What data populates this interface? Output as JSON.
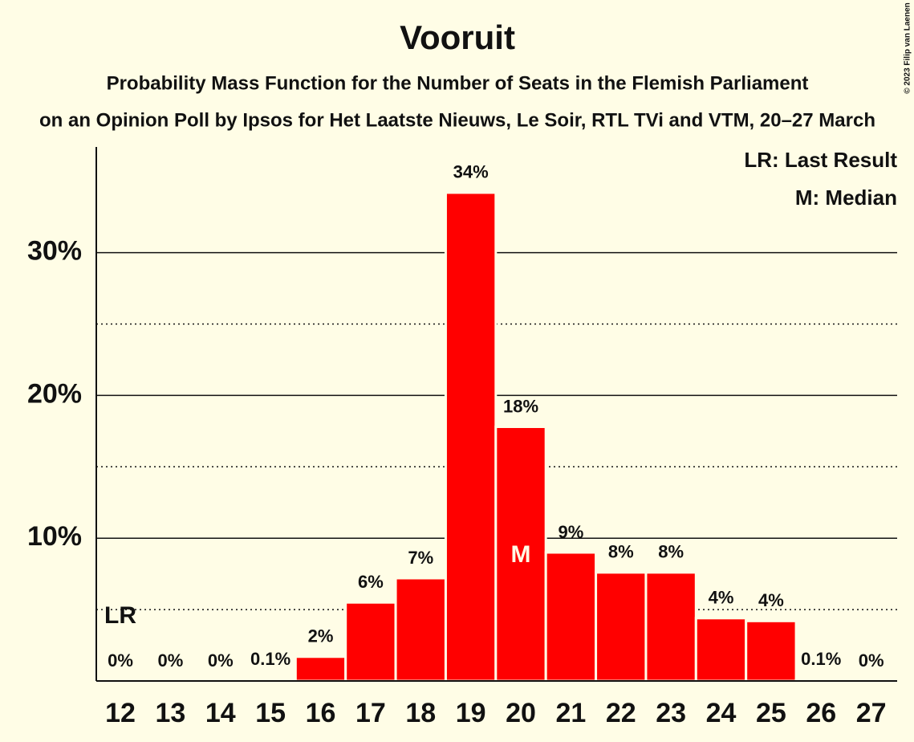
{
  "chart_data": {
    "type": "bar",
    "title": "Vooruit",
    "subtitle": "Probability Mass Function for the Number of Seats in the Flemish Parliament",
    "subtitle2": "on an Opinion Poll by Ipsos for Het Laatste Nieuws, Le Soir, RTL TVi and VTM, 20–27 March",
    "copyright": "© 2023 Filip van Laenen",
    "categories": [
      "12",
      "13",
      "14",
      "15",
      "16",
      "17",
      "18",
      "19",
      "20",
      "21",
      "22",
      "23",
      "24",
      "25",
      "26",
      "27"
    ],
    "values": [
      0,
      0,
      0,
      0.1,
      1.7,
      5.5,
      7.2,
      34.2,
      17.8,
      9.0,
      7.6,
      7.6,
      4.4,
      4.2,
      0.1,
      0
    ],
    "value_labels": [
      "0%",
      "0%",
      "0%",
      "0.1%",
      "2%",
      "6%",
      "7%",
      "34%",
      "18%",
      "9%",
      "8%",
      "8%",
      "4%",
      "4%",
      "0.1%",
      "0%"
    ],
    "color": "#ff0000",
    "ylim": [
      0,
      37.4
    ],
    "yticks": [
      {
        "value": 10,
        "label": "10%"
      },
      {
        "value": 20,
        "label": "20%"
      },
      {
        "value": 30,
        "label": "30%"
      }
    ],
    "minor_yticks": [
      5,
      15,
      25
    ],
    "grid": true,
    "last_result": {
      "label": "LR",
      "category": "12"
    },
    "median": {
      "label": "M",
      "category": "20"
    },
    "legend": [
      "LR: Last Result",
      "M: Median"
    ]
  }
}
